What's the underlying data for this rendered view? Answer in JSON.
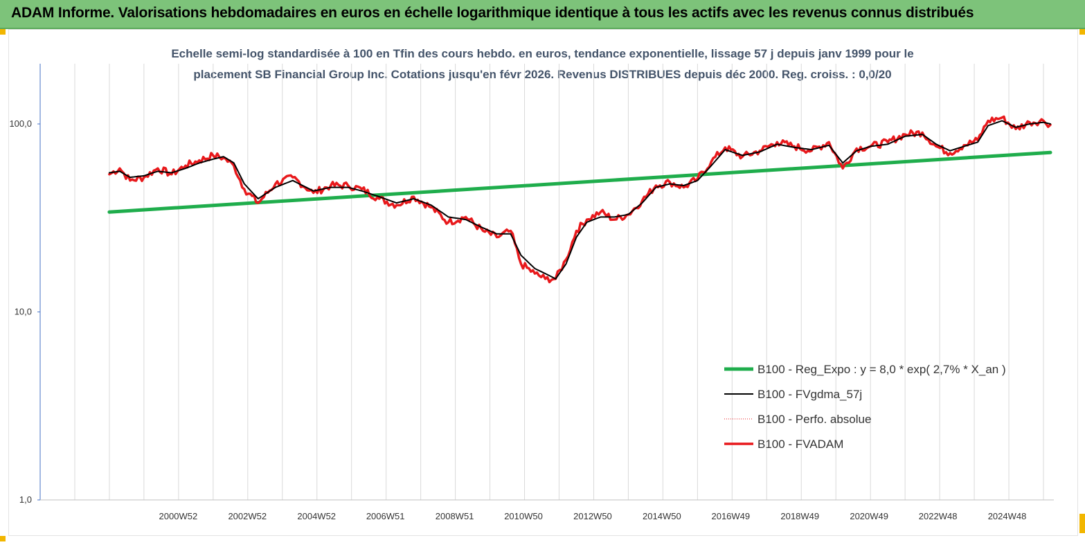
{
  "banner": {
    "title": "ADAM Informe. Valorisations hebdomadaires en euros en échelle logarithmique identique à tous les actifs avec les revenus connus distribués",
    "color": "#7dc37a"
  },
  "chart_data": {
    "type": "line",
    "title_line1": "Echelle semi-log standardisée à 100 en Tfin des cours hebdo. en euros, tendance exponentielle, lissage 57 j depuis janv 1999 pour le",
    "title_line2": "placement SB Financial Group Inc. Cotations jusqu'en févr 2026. Revenus DISTRIBUES depuis déc 2000. Reg. croiss. : 0,0/20",
    "y_scale": "log",
    "ylim": [
      1,
      180
    ],
    "y_ticks": [
      {
        "value": 100,
        "label": "100,0"
      },
      {
        "value": 10,
        "label": "10,0"
      },
      {
        "value": 1,
        "label": "1,0"
      }
    ],
    "xlim": [
      1997.0,
      2026.3
    ],
    "x_ticks": [
      {
        "value": 2000.99,
        "label": "2000W52"
      },
      {
        "value": 2002.99,
        "label": "2002W52"
      },
      {
        "value": 2004.99,
        "label": "2004W52"
      },
      {
        "value": 2006.98,
        "label": "2006W51"
      },
      {
        "value": 2008.98,
        "label": "2008W51"
      },
      {
        "value": 2010.97,
        "label": "2010W50"
      },
      {
        "value": 2012.97,
        "label": "2012W50"
      },
      {
        "value": 2014.97,
        "label": "2014W50"
      },
      {
        "value": 2016.96,
        "label": "2016W49"
      },
      {
        "value": 2018.96,
        "label": "2018W49"
      },
      {
        "value": 2020.96,
        "label": "2020W49"
      },
      {
        "value": 2022.95,
        "label": "2022W48"
      },
      {
        "value": 2024.95,
        "label": "2024W48"
      }
    ],
    "minor_x_ticks": [
      1997.0,
      1998.0,
      1999.0,
      2000.0,
      2001.0,
      2002.0,
      2003.0,
      2004.0,
      2005.0,
      2006.0,
      2007.0,
      2008.0,
      2009.0,
      2010.0,
      2011.0,
      2012.0,
      2013.0,
      2014.0,
      2015.0,
      2016.0,
      2017.0,
      2018.0,
      2019.0,
      2020.0,
      2021.0,
      2022.0,
      2023.0,
      2024.0,
      2025.0,
      2026.0
    ],
    "grid": "vertical",
    "legend_position": "right",
    "series": [
      {
        "name": "B100 - Reg_Expo : y = 8,0 *  exp( 2,7% *   X_an )",
        "color": "#1fad4c",
        "width": 5,
        "x": [
          1999.0,
          2026.2
        ],
        "y": [
          34.0,
          70.5
        ]
      },
      {
        "name": "B100 - FVgdma_57j",
        "color": "#000000",
        "width": 2,
        "x": [
          1999.0,
          1999.3,
          1999.6,
          2000.0,
          2000.4,
          2000.8,
          2001.2,
          2001.6,
          2002.0,
          2002.3,
          2002.6,
          2002.9,
          2003.3,
          2003.8,
          2004.3,
          2004.9,
          2005.4,
          2005.9,
          2006.3,
          2006.8,
          2007.3,
          2007.8,
          2008.3,
          2008.8,
          2009.3,
          2009.8,
          2010.2,
          2010.6,
          2010.9,
          2011.3,
          2011.6,
          2011.9,
          2012.2,
          2012.5,
          2012.8,
          2013.2,
          2013.6,
          2014.0,
          2014.4,
          2014.8,
          2015.2,
          2015.6,
          2016.0,
          2016.4,
          2016.8,
          2017.3,
          2017.8,
          2018.3,
          2018.8,
          2019.3,
          2019.8,
          2020.2,
          2020.6,
          2021.0,
          2021.5,
          2022.0,
          2022.5,
          2022.9,
          2023.3,
          2023.7,
          2024.1,
          2024.4,
          2024.8,
          2025.2,
          2025.6,
          2026.0,
          2026.2
        ],
        "y": [
          55,
          56,
          52,
          53,
          56,
          55,
          58,
          62,
          65,
          67,
          62,
          48,
          40,
          46,
          50,
          44,
          46,
          46,
          44,
          41,
          38,
          40,
          37,
          32,
          31,
          28,
          26,
          26,
          20,
          17,
          16,
          15,
          18,
          25,
          30,
          32,
          32,
          33,
          38,
          46,
          48,
          47,
          50,
          60,
          73,
          68,
          71,
          78,
          75,
          73,
          77,
          62,
          72,
          76,
          78,
          86,
          88,
          78,
          72,
          76,
          80,
          98,
          104,
          96,
          100,
          102,
          100
        ]
      },
      {
        "name": "B100 - Perfo. absolue",
        "color": "#e8191c",
        "style": "dotted",
        "width": 1,
        "x": [
          1999.0,
          1999.3,
          1999.6,
          2000.0,
          2000.4,
          2000.8,
          2001.2,
          2001.6,
          2002.0,
          2002.3,
          2002.6,
          2002.9,
          2003.3,
          2003.8,
          2004.3,
          2004.9,
          2005.4,
          2005.9,
          2006.3,
          2006.8,
          2007.3,
          2007.8,
          2008.3,
          2008.8,
          2009.3,
          2009.8,
          2010.2,
          2010.6,
          2010.9,
          2011.3,
          2011.6,
          2011.9,
          2012.2,
          2012.5,
          2012.8,
          2013.2,
          2013.6,
          2014.0,
          2014.4,
          2014.8,
          2015.2,
          2015.6,
          2016.0,
          2016.4,
          2016.8,
          2017.3,
          2017.8,
          2018.3,
          2018.8,
          2019.3,
          2019.8,
          2020.2,
          2020.6,
          2021.0,
          2021.5,
          2022.0,
          2022.5,
          2022.9,
          2023.3,
          2023.7,
          2024.1,
          2024.4,
          2024.8,
          2025.2,
          2025.6,
          2026.0,
          2026.2
        ],
        "y": [
          54,
          58,
          50,
          52,
          58,
          54,
          60,
          64,
          68,
          66,
          60,
          45,
          38,
          48,
          52,
          43,
          47,
          47,
          45,
          40,
          37,
          41,
          36,
          30,
          32,
          27,
          25,
          27,
          18,
          16,
          15,
          15,
          19,
          27,
          31,
          34,
          31,
          33,
          39,
          47,
          49,
          46,
          51,
          63,
          75,
          67,
          72,
          80,
          76,
          72,
          80,
          58,
          74,
          76,
          80,
          88,
          90,
          76,
          70,
          77,
          82,
          104,
          108,
          94,
          102,
          104,
          99
        ]
      },
      {
        "name": "B100 - FVADAM",
        "color": "#e8191c",
        "width": 3.5,
        "x": [
          1999.0,
          1999.3,
          1999.6,
          2000.0,
          2000.4,
          2000.8,
          2001.2,
          2001.6,
          2002.0,
          2002.3,
          2002.6,
          2002.9,
          2003.3,
          2003.8,
          2004.3,
          2004.9,
          2005.4,
          2005.9,
          2006.3,
          2006.8,
          2007.3,
          2007.8,
          2008.3,
          2008.8,
          2009.3,
          2009.8,
          2010.2,
          2010.6,
          2010.9,
          2011.3,
          2011.6,
          2011.9,
          2012.2,
          2012.5,
          2012.8,
          2013.2,
          2013.6,
          2014.0,
          2014.4,
          2014.8,
          2015.2,
          2015.6,
          2016.0,
          2016.4,
          2016.8,
          2017.3,
          2017.8,
          2018.3,
          2018.8,
          2019.3,
          2019.8,
          2020.2,
          2020.6,
          2021.0,
          2021.5,
          2022.0,
          2022.5,
          2022.9,
          2023.3,
          2023.7,
          2024.1,
          2024.4,
          2024.8,
          2025.2,
          2025.6,
          2026.0,
          2026.2
        ],
        "y": [
          54,
          58,
          50,
          52,
          58,
          54,
          60,
          64,
          68,
          66,
          60,
          45,
          38,
          48,
          52,
          43,
          47,
          47,
          45,
          40,
          37,
          41,
          36,
          30,
          32,
          27,
          25,
          27,
          18,
          16,
          15,
          15,
          19,
          27,
          31,
          34,
          31,
          33,
          39,
          47,
          49,
          46,
          51,
          63,
          75,
          67,
          72,
          80,
          76,
          72,
          80,
          58,
          74,
          76,
          80,
          88,
          90,
          76,
          70,
          77,
          82,
          104,
          108,
          94,
          102,
          104,
          99
        ]
      }
    ]
  }
}
